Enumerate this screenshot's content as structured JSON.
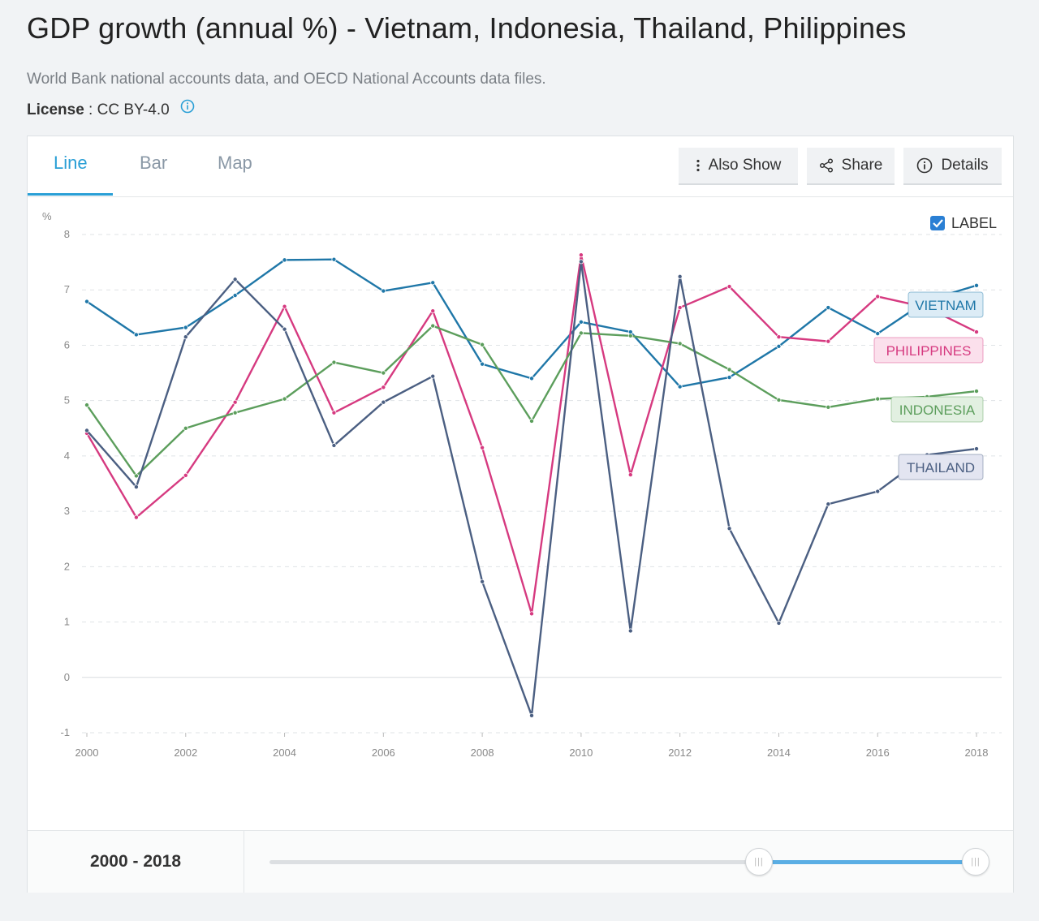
{
  "header": {
    "title": "GDP growth (annual %) - Vietnam, Indonesia, Thailand, Philippines",
    "source": "World Bank national accounts data, and OECD National Accounts data files.",
    "license_label": "License",
    "license_value": " : CC BY-4.0"
  },
  "tabs": [
    {
      "label": "Line",
      "active": true
    },
    {
      "label": "Bar",
      "active": false
    },
    {
      "label": "Map",
      "active": false
    }
  ],
  "toolbar": {
    "also_show": "Also Show",
    "share": "Share",
    "details": "Details"
  },
  "label_toggle": "LABEL",
  "range": {
    "label": "2000 - 2018"
  },
  "chart_data": {
    "type": "line",
    "ylabel": "%",
    "ylim": [
      -1,
      8
    ],
    "yticks": [
      -1,
      0,
      1,
      2,
      3,
      4,
      5,
      6,
      7,
      8
    ],
    "xticks": [
      2000,
      2002,
      2004,
      2006,
      2008,
      2010,
      2012,
      2014,
      2016,
      2018
    ],
    "x": [
      2000,
      2001,
      2002,
      2003,
      2004,
      2005,
      2006,
      2007,
      2008,
      2009,
      2010,
      2011,
      2012,
      2013,
      2014,
      2015,
      2016,
      2017,
      2018
    ],
    "series": [
      {
        "name": "VIETNAM",
        "color": "#1f77a8",
        "label_bg": "#dcecf6",
        "values": [
          6.79,
          6.19,
          6.32,
          6.9,
          7.54,
          7.55,
          6.98,
          7.13,
          5.66,
          5.4,
          6.42,
          6.24,
          5.25,
          5.42,
          5.98,
          6.68,
          6.21,
          6.81,
          7.08
        ]
      },
      {
        "name": "PHILIPPINES",
        "color": "#d63a80",
        "label_bg": "#fbe0ec",
        "values": [
          4.41,
          2.89,
          3.65,
          4.97,
          6.7,
          4.78,
          5.24,
          6.62,
          4.15,
          1.15,
          7.63,
          3.66,
          6.68,
          7.06,
          6.15,
          6.07,
          6.88,
          6.68,
          6.24
        ]
      },
      {
        "name": "INDONESIA",
        "color": "#5c9e5c",
        "label_bg": "#e2f0e1",
        "values": [
          4.92,
          3.64,
          4.5,
          4.78,
          5.03,
          5.69,
          5.5,
          6.35,
          6.01,
          4.63,
          6.22,
          6.17,
          6.03,
          5.56,
          5.01,
          4.88,
          5.03,
          5.07,
          5.17
        ]
      },
      {
        "name": "THAILAND",
        "color": "#4b5f82",
        "label_bg": "#e3e5f1",
        "values": [
          4.46,
          3.44,
          6.15,
          7.19,
          6.29,
          4.19,
          4.97,
          5.44,
          1.73,
          -0.69,
          7.51,
          0.84,
          7.24,
          2.69,
          0.98,
          3.13,
          3.36,
          4.02,
          4.13
        ]
      }
    ]
  }
}
